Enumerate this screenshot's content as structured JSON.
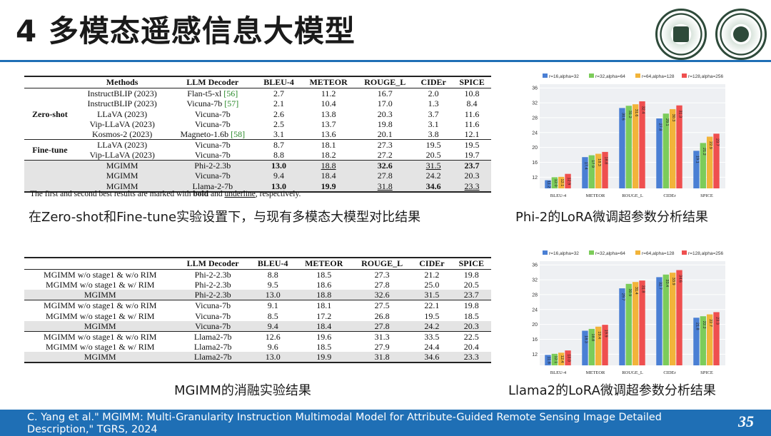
{
  "title": "4 多模态遥感信息大模型",
  "table1": {
    "headers": [
      "Methods",
      "LLM Decoder",
      "BLEU-4",
      "METEOR",
      "ROUGE_L",
      "CIDEr",
      "SPICE"
    ],
    "groups": {
      "zero_shot": "Zero-shot",
      "fine_tune": "Fine-tune"
    },
    "rows": [
      {
        "method": "InstructBLIP (2023)",
        "decoder": "Flan-t5-xl",
        "ref": "[56]",
        "bleu": "2.7",
        "meteor": "11.2",
        "rouge": "16.7",
        "cider": "2.0",
        "spice": "10.8"
      },
      {
        "method": "InstructBLIP (2023)",
        "decoder": "Vicuna-7b",
        "ref": "[57]",
        "bleu": "2.1",
        "meteor": "10.4",
        "rouge": "17.0",
        "cider": "1.3",
        "spice": "8.4"
      },
      {
        "method": "LLaVA (2023)",
        "decoder": "Vicuna-7b",
        "bleu": "2.6",
        "meteor": "13.8",
        "rouge": "20.3",
        "cider": "3.7",
        "spice": "11.6"
      },
      {
        "method": "Vip-LLaVA (2023)",
        "decoder": "Vicuna-7b",
        "bleu": "2.5",
        "meteor": "13.7",
        "rouge": "19.8",
        "cider": "3.1",
        "spice": "11.6"
      },
      {
        "method": "Kosmos-2 (2023)",
        "decoder": "Magneto-1.6b",
        "ref": "[58]",
        "bleu": "3.1",
        "meteor": "13.6",
        "rouge": "20.1",
        "cider": "3.8",
        "spice": "12.1"
      },
      {
        "method": "LLaVA (2023)",
        "decoder": "Vicuna-7b",
        "bleu": "8.7",
        "meteor": "18.1",
        "rouge": "27.3",
        "cider": "19.5",
        "spice": "19.5"
      },
      {
        "method": "Vip-LLaVA (2023)",
        "decoder": "Vicuna-7b",
        "bleu": "8.8",
        "meteor": "18.2",
        "rouge": "27.2",
        "cider": "20.5",
        "spice": "19.7"
      },
      {
        "method": "MGIMM",
        "decoder": "Phi-2-2.3b",
        "bleu": "13.0",
        "meteor": "18.8",
        "rouge": "32.6",
        "cider": "31.5",
        "spice": "23.7"
      },
      {
        "method": "MGIMM",
        "decoder": "Vicuna-7b",
        "bleu": "9.4",
        "meteor": "18.4",
        "rouge": "27.8",
        "cider": "24.2",
        "spice": "20.3"
      },
      {
        "method": "MGIMM",
        "decoder": "Llama-2-7b",
        "bleu": "13.0",
        "meteor": "19.9",
        "rouge": "31.8",
        "cider": "34.6",
        "spice": "23.3"
      }
    ],
    "note_prefix": "The first and second best results are marked with ",
    "note_bold": "bold",
    "note_mid": " and ",
    "note_underline": "underline",
    "note_suffix": ", respectively."
  },
  "table2": {
    "headers": [
      "",
      "LLM Decoder",
      "BLEU-4",
      "METEOR",
      "ROUGE_L",
      "CIDEr",
      "SPICE"
    ],
    "rows": [
      {
        "method": "MGIMM w/o stage1 & w/o RIM",
        "decoder": "Phi-2-2.3b",
        "bleu": "8.8",
        "meteor": "18.5",
        "rouge": "27.3",
        "cider": "21.2",
        "spice": "19.8"
      },
      {
        "method": "MGIMM w/o stage1 & w/ RIM",
        "decoder": "Phi-2-2.3b",
        "bleu": "9.5",
        "meteor": "18.6",
        "rouge": "27.8",
        "cider": "25.0",
        "spice": "20.5"
      },
      {
        "method": "MGIMM",
        "decoder": "Phi-2-2.3b",
        "bleu": "13.0",
        "meteor": "18.8",
        "rouge": "32.6",
        "cider": "31.5",
        "spice": "23.7"
      },
      {
        "method": "MGIMM w/o stage1 & w/o RIM",
        "decoder": "Vicuna-7b",
        "bleu": "9.1",
        "meteor": "18.1",
        "rouge": "27.5",
        "cider": "22.1",
        "spice": "19.8"
      },
      {
        "method": "MGIMM w/o stage1 & w/ RIM",
        "decoder": "Vicuna-7b",
        "bleu": "8.5",
        "meteor": "17.2",
        "rouge": "26.8",
        "cider": "19.5",
        "spice": "18.5"
      },
      {
        "method": "MGIMM",
        "decoder": "Vicuna-7b",
        "bleu": "9.4",
        "meteor": "18.4",
        "rouge": "27.8",
        "cider": "24.2",
        "spice": "20.3"
      },
      {
        "method": "MGIMM w/o stage1 & w/o RIM",
        "decoder": "Llama2-7b",
        "bleu": "12.6",
        "meteor": "19.6",
        "rouge": "31.3",
        "cider": "33.5",
        "spice": "22.5"
      },
      {
        "method": "MGIMM w/o stage1 & w/ RIM",
        "decoder": "Llama2-7b",
        "bleu": "9.6",
        "meteor": "18.5",
        "rouge": "27.9",
        "cider": "24.4",
        "spice": "20.4"
      },
      {
        "method": "MGIMM",
        "decoder": "Llama2-7b",
        "bleu": "13.0",
        "meteor": "19.9",
        "rouge": "31.8",
        "cider": "34.6",
        "spice": "23.3"
      }
    ]
  },
  "captions": {
    "table1": "在Zero-shot和Fine-tune实验设置下，与现有多模态大模型对比结果",
    "chart1": "Phi-2的LoRA微调超参数分析结果",
    "table2": "MGIMM的消融实验结果",
    "chart2": "Llama2的LoRA微调超参数分析结果"
  },
  "chart_data": [
    {
      "type": "bar",
      "categories": [
        "BLEU-4",
        "METEOR",
        "ROUGE_L",
        "CIDEr",
        "SPICE"
      ],
      "series": [
        {
          "name": "r=16,alpha=32",
          "color": "#4a7fd4",
          "values": [
            11.2,
            17.4,
            30.6,
            27.8,
            19.1
          ]
        },
        {
          "name": "r=32,alpha=64",
          "color": "#7ccc5a",
          "values": [
            12.0,
            17.9,
            31.2,
            29.1,
            21.2
          ]
        },
        {
          "name": "r=64,alpha=128",
          "color": "#f2b43a",
          "values": [
            12.1,
            18.3,
            31.6,
            30.3,
            22.9
          ]
        },
        {
          "name": "r=128,alpha=256",
          "color": "#ef4f4f",
          "values": [
            12.9,
            18.8,
            32.4,
            31.3,
            23.7
          ]
        }
      ],
      "yticks": [
        12,
        16,
        20,
        24,
        28,
        32,
        36
      ],
      "ylim": [
        9,
        37
      ],
      "grid": true,
      "legend": "top"
    },
    {
      "type": "bar",
      "categories": [
        "BLEU-4",
        "METEOR",
        "ROUGE_L",
        "CIDEr",
        "SPICE"
      ],
      "series": [
        {
          "name": "r=16,alpha=32",
          "color": "#4a7fd4",
          "values": [
            11.8,
            18.3,
            29.7,
            32.7,
            21.8
          ]
        },
        {
          "name": "r=32,alpha=64",
          "color": "#7ccc5a",
          "values": [
            12.1,
            18.8,
            30.9,
            33.4,
            22.2
          ]
        },
        {
          "name": "r=64,alpha=128",
          "color": "#f2b43a",
          "values": [
            12.4,
            19.4,
            31.4,
            33.9,
            22.7
          ]
        },
        {
          "name": "r=128,alpha=256",
          "color": "#ef4f4f",
          "values": [
            13.0,
            19.9,
            31.8,
            34.6,
            23.3
          ]
        }
      ],
      "yticks": [
        12,
        16,
        20,
        24,
        28,
        32,
        36
      ],
      "ylim": [
        9,
        37
      ],
      "grid": true,
      "legend": "top"
    }
  ],
  "footer": {
    "citation": "C. Yang et al.\" MGIMM: Multi-Granularity Instruction Multimodal Model for Attribute-Guided Remote Sensing Image Detailed Description,\" TGRS, 2024",
    "page": "35"
  }
}
